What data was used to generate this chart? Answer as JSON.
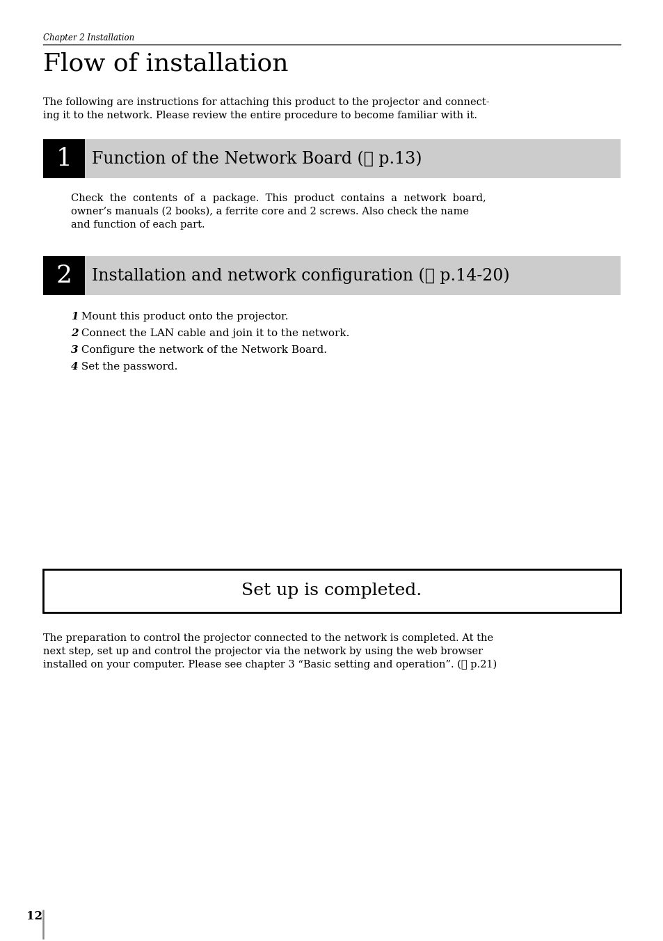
{
  "page_bg": "#ffffff",
  "chapter_label": "Chapter 2 Installation",
  "title": "Flow of installation",
  "intro_line1": "The following are instructions for attaching this product to the projector and connect-",
  "intro_line2": "ing it to the network. Please review the entire procedure to become familiar with it.",
  "section1_num": "1",
  "section1_title": "Function of the Network Board (",
  "section1_ref": "p.13)",
  "section1_body_line1": "Check  the  contents  of  a  package.  This  product  contains  a  network  board,",
  "section1_body_line2": "owner’s manuals (2 books), a ferrite core and 2 screws. Also check the name",
  "section1_body_line3": "and function of each part.",
  "section2_num": "2",
  "section2_title": "Installation and network configuration (",
  "section2_ref": "p.14-20)",
  "step1_num": "1",
  "step1_text": " Mount this product onto the projector.",
  "step2_num": "2",
  "step2_text": " Connect the LAN cable and join it to the network.",
  "step3_num": "3",
  "step3_text": " Configure the network of the Network Board.",
  "step4_num": "4",
  "step4_text": " Set the password.",
  "completed_box_text": "Set up is completed.",
  "footer_line1": "The preparation to control the projector connected to the network is completed. At the",
  "footer_line2": "next step, set up and control the projector via the network by using the web browser",
  "footer_line3": "installed on your computer. Please see chapter 3 “Basic setting and operation”. (",
  "footer_ref": "p.21)",
  "page_number": "12",
  "section_bg": "#cccccc",
  "section_num_bg": "#000000",
  "section_num_color": "#ffffff",
  "section_title_color": "#000000",
  "body_color": "#000000",
  "header_line_color": "#000000",
  "ref_symbol": "p"
}
